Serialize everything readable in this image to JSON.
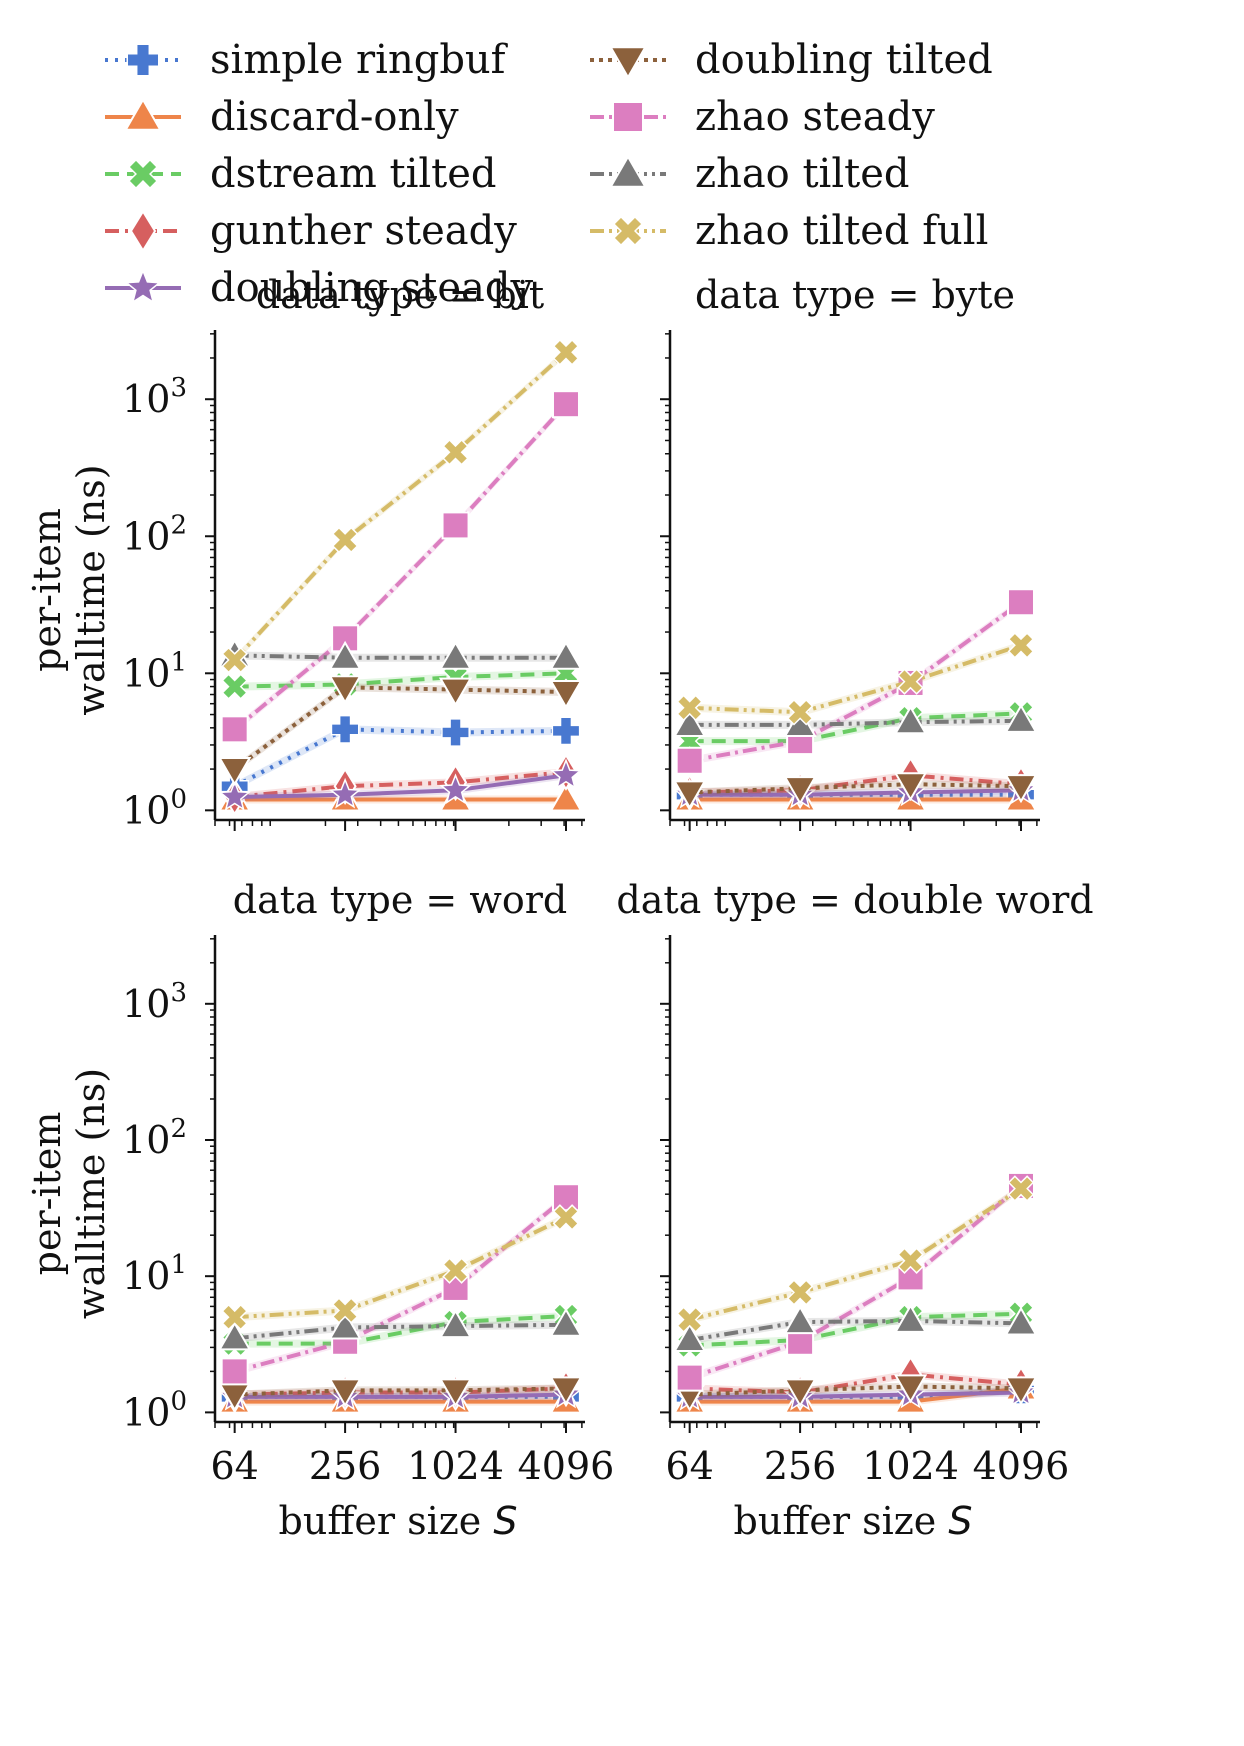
{
  "chart_data": {
    "type": "line",
    "x_scale": "log2",
    "y_scale": "log10",
    "x_ticks": [
      64,
      256,
      1024,
      4096
    ],
    "x_tick_labels": [
      "64",
      "256",
      "1024",
      "4096"
    ],
    "y_ticks": [
      1,
      10,
      100,
      1000
    ],
    "y_tick_base": "10",
    "y_tick_exponents": [
      "0",
      "1",
      "2",
      "3"
    ],
    "ylim": [
      0.85,
      3200
    ],
    "xlim": [
      50,
      5200
    ],
    "ylabel_line1": "per-item",
    "ylabel_line2": "walltime (ns)",
    "xlabel_text": "buffer size ",
    "xlabel_var": "S",
    "legend_position": "top",
    "series": [
      {
        "name": "simple ringbuf",
        "color": "#4878d0",
        "marker": "plus",
        "dash": "3,7"
      },
      {
        "name": "discard-only",
        "color": "#ee854a",
        "marker": "triangle-up",
        "dash": ""
      },
      {
        "name": "dstream tilted",
        "color": "#6acc64",
        "marker": "x",
        "dash": "14,8"
      },
      {
        "name": "gunther steady",
        "color": "#d65f5f",
        "marker": "diamond",
        "dash": "14,6,3,6"
      },
      {
        "name": "doubling steady",
        "color": "#956cb4",
        "marker": "star",
        "dash": ""
      },
      {
        "name": "doubling tilted",
        "color": "#8c613c",
        "marker": "triangle-down",
        "dash": "4,5"
      },
      {
        "name": "zhao steady",
        "color": "#dc7ec0",
        "marker": "square",
        "dash": "14,5,3,5"
      },
      {
        "name": "zhao tilted",
        "color": "#797979",
        "marker": "triangle-up",
        "dash": "14,5,3,5,3,5"
      },
      {
        "name": "zhao tilted full",
        "color": "#d5bb67",
        "marker": "x",
        "dash": "14,5,3,5,3,5"
      }
    ],
    "panels": [
      {
        "title": "data type = bit",
        "x": [
          64,
          256,
          1024,
          4096
        ],
        "series_values": [
          [
            1.5,
            3.9,
            3.7,
            3.8
          ],
          [
            1.2,
            1.2,
            1.2,
            1.2
          ],
          [
            8.0,
            8.3,
            9.4,
            10.0
          ],
          [
            1.25,
            1.5,
            1.6,
            1.9
          ],
          [
            1.25,
            1.3,
            1.4,
            1.8
          ],
          [
            2.0,
            7.9,
            7.6,
            7.3
          ],
          [
            3.9,
            18,
            120,
            920
          ],
          [
            13.5,
            13.0,
            13.0,
            13.0
          ],
          [
            12.5,
            94,
            410,
            2200
          ]
        ]
      },
      {
        "title": "data type = byte",
        "x": [
          64,
          256,
          1024,
          4096
        ],
        "series_values": [
          [
            1.3,
            1.3,
            1.3,
            1.3
          ],
          [
            1.2,
            1.2,
            1.2,
            1.2
          ],
          [
            3.2,
            3.2,
            4.7,
            5.1
          ],
          [
            1.35,
            1.4,
            1.8,
            1.55
          ],
          [
            1.3,
            1.3,
            1.35,
            1.4
          ],
          [
            1.35,
            1.45,
            1.55,
            1.5
          ],
          [
            2.3,
            3.2,
            8.5,
            33
          ],
          [
            4.2,
            4.2,
            4.4,
            4.5
          ],
          [
            5.6,
            5.2,
            8.7,
            16
          ]
        ]
      },
      {
        "title": "data type = word",
        "x": [
          64,
          256,
          1024,
          4096
        ],
        "series_values": [
          [
            1.3,
            1.3,
            1.3,
            1.3
          ],
          [
            1.2,
            1.2,
            1.2,
            1.2
          ],
          [
            3.2,
            3.2,
            4.6,
            5.1
          ],
          [
            1.35,
            1.4,
            1.4,
            1.5
          ],
          [
            1.3,
            1.3,
            1.3,
            1.35
          ],
          [
            1.35,
            1.45,
            1.45,
            1.5
          ],
          [
            2.0,
            3.3,
            8.2,
            38
          ],
          [
            3.5,
            4.2,
            4.3,
            4.4
          ],
          [
            5.0,
            5.6,
            11,
            27
          ]
        ]
      },
      {
        "title": "data type = double word",
        "x": [
          64,
          256,
          1024,
          4096
        ],
        "series_values": [
          [
            1.3,
            1.3,
            1.3,
            1.45
          ],
          [
            1.2,
            1.2,
            1.2,
            1.5
          ],
          [
            3.1,
            3.4,
            5.0,
            5.3
          ],
          [
            1.5,
            1.4,
            1.9,
            1.6
          ],
          [
            1.3,
            1.3,
            1.35,
            1.4
          ],
          [
            1.35,
            1.45,
            1.55,
            1.5
          ],
          [
            1.8,
            3.3,
            9.8,
            46
          ],
          [
            3.4,
            4.6,
            4.7,
            4.5
          ],
          [
            4.8,
            7.6,
            13,
            44
          ]
        ]
      }
    ]
  }
}
